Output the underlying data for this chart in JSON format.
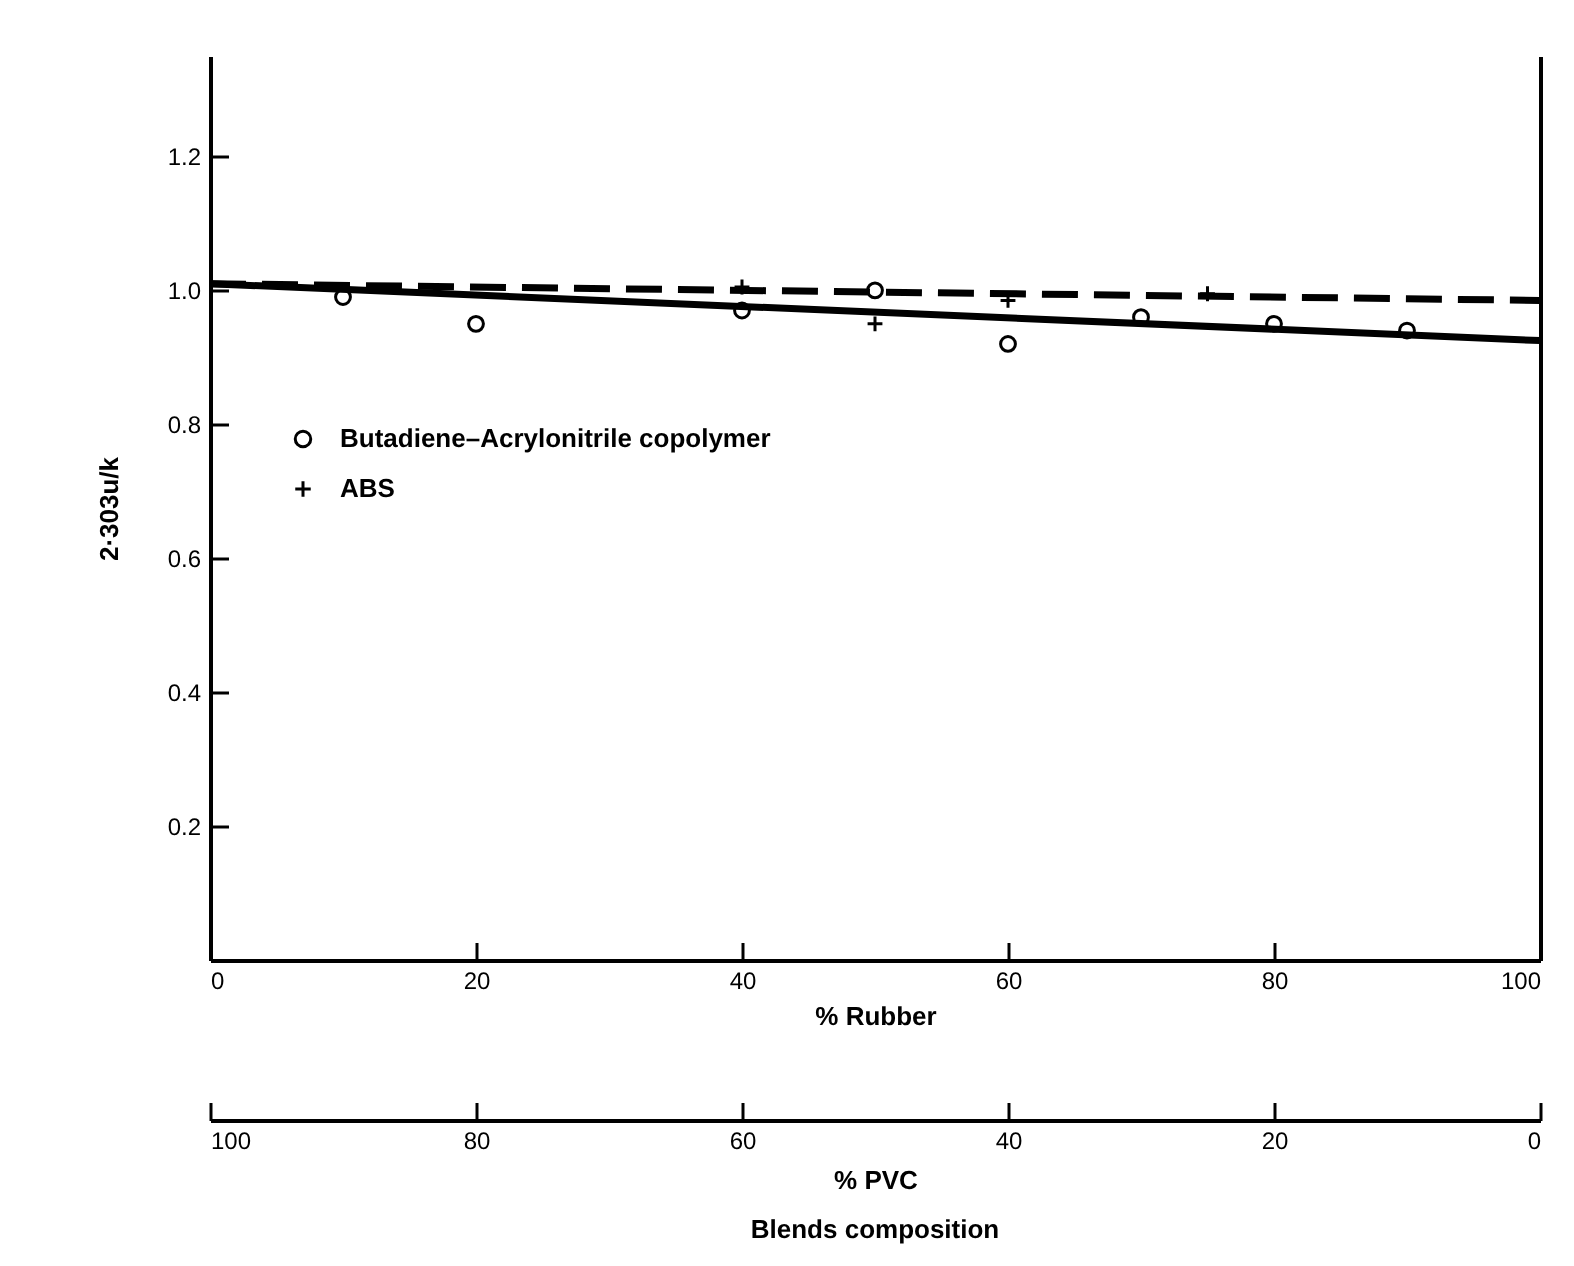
{
  "chart_data": {
    "type": "scatter",
    "xlabel": "% Rubber",
    "ylabel": "2·303u/k",
    "x2label": "% PVC",
    "annotations": [
      "Blends composition"
    ],
    "xlim": [
      0,
      100
    ],
    "xticks": [
      0,
      20,
      40,
      60,
      80,
      100
    ],
    "x2lim": [
      100,
      0
    ],
    "x2ticks": [
      100,
      80,
      60,
      40,
      20,
      0
    ],
    "ylim": [
      0,
      1.35
    ],
    "yticks": [
      {
        "value": 0.2,
        "label": "0.2"
      },
      {
        "value": 0.4,
        "label": "0.4"
      },
      {
        "value": 0.6,
        "label": "0.6"
      },
      {
        "value": 0.8,
        "label": "0.8"
      },
      {
        "value": 1.0,
        "label": "1.0"
      },
      {
        "value": 1.2,
        "label": "1.2"
      }
    ],
    "grid": false,
    "legend": "left",
    "series": [
      {
        "name": "Butadiene–Acrylonitrile copolymer",
        "type": "scatter",
        "marker": "circle",
        "color": "#000000",
        "x": [
          10,
          20,
          40,
          50,
          60,
          70,
          80,
          90
        ],
        "values": [
          0.99,
          0.95,
          0.97,
          1.0,
          0.92,
          0.96,
          0.95,
          0.94
        ]
      },
      {
        "name": "ABS",
        "type": "scatter",
        "marker": "cross",
        "color": "#000000",
        "x": [
          40,
          50,
          60,
          75
        ],
        "values": [
          1.005,
          0.95,
          0.985,
          0.995
        ]
      },
      {
        "type": "line",
        "line_style": "solid",
        "color": "#000000",
        "x": [
          0,
          100
        ],
        "values": [
          1.01,
          0.925
        ]
      },
      {
        "type": "line",
        "line_style": "dashed",
        "color": "#000000",
        "x": [
          0,
          100
        ],
        "values": [
          1.01,
          0.985
        ]
      }
    ]
  }
}
